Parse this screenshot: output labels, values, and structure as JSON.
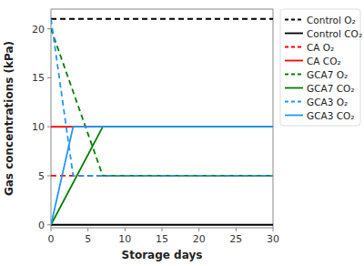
{
  "chart_data": {
    "type": "line",
    "xlabel": "Storage days",
    "ylabel": "Gas concentrations (kPa)",
    "xlim": [
      0,
      30
    ],
    "ylim": [
      -0.3,
      22
    ],
    "xticks": [
      0,
      5,
      10,
      15,
      20,
      25,
      30
    ],
    "yticks": [
      0,
      5,
      10,
      15,
      20
    ],
    "grid": false,
    "legend": "upper right",
    "series": [
      {
        "name": "Control O₂",
        "color": "black",
        "line_style": "dashed",
        "x": [
          0,
          30
        ],
        "values": [
          21,
          21
        ]
      },
      {
        "name": "Control CO₂",
        "color": "black",
        "line_style": "solid",
        "x": [
          0,
          30
        ],
        "values": [
          0,
          0
        ]
      },
      {
        "name": "CA O₂",
        "color": "red",
        "line_style": "dashed",
        "x": [
          0,
          30
        ],
        "values": [
          5,
          5
        ]
      },
      {
        "name": "CA CO₂",
        "color": "red",
        "line_style": "solid",
        "x": [
          0,
          30
        ],
        "values": [
          10,
          10
        ]
      },
      {
        "name": "GCA7 O₂",
        "color": "green",
        "line_style": "dashed",
        "x": [
          0,
          7,
          30
        ],
        "values": [
          20,
          5,
          5
        ]
      },
      {
        "name": "GCA7 CO₂",
        "color": "green",
        "line_style": "solid",
        "x": [
          0,
          7,
          30
        ],
        "values": [
          0,
          10,
          10
        ]
      },
      {
        "name": "GCA3 O₂",
        "color": "#2196f3",
        "line_style": "dashed",
        "x": [
          0,
          3,
          30
        ],
        "values": [
          21,
          5,
          5
        ]
      },
      {
        "name": "GCA3 CO₂",
        "color": "#2196f3",
        "line_style": "solid",
        "x": [
          0,
          3,
          30
        ],
        "values": [
          0,
          10,
          10
        ]
      }
    ]
  }
}
